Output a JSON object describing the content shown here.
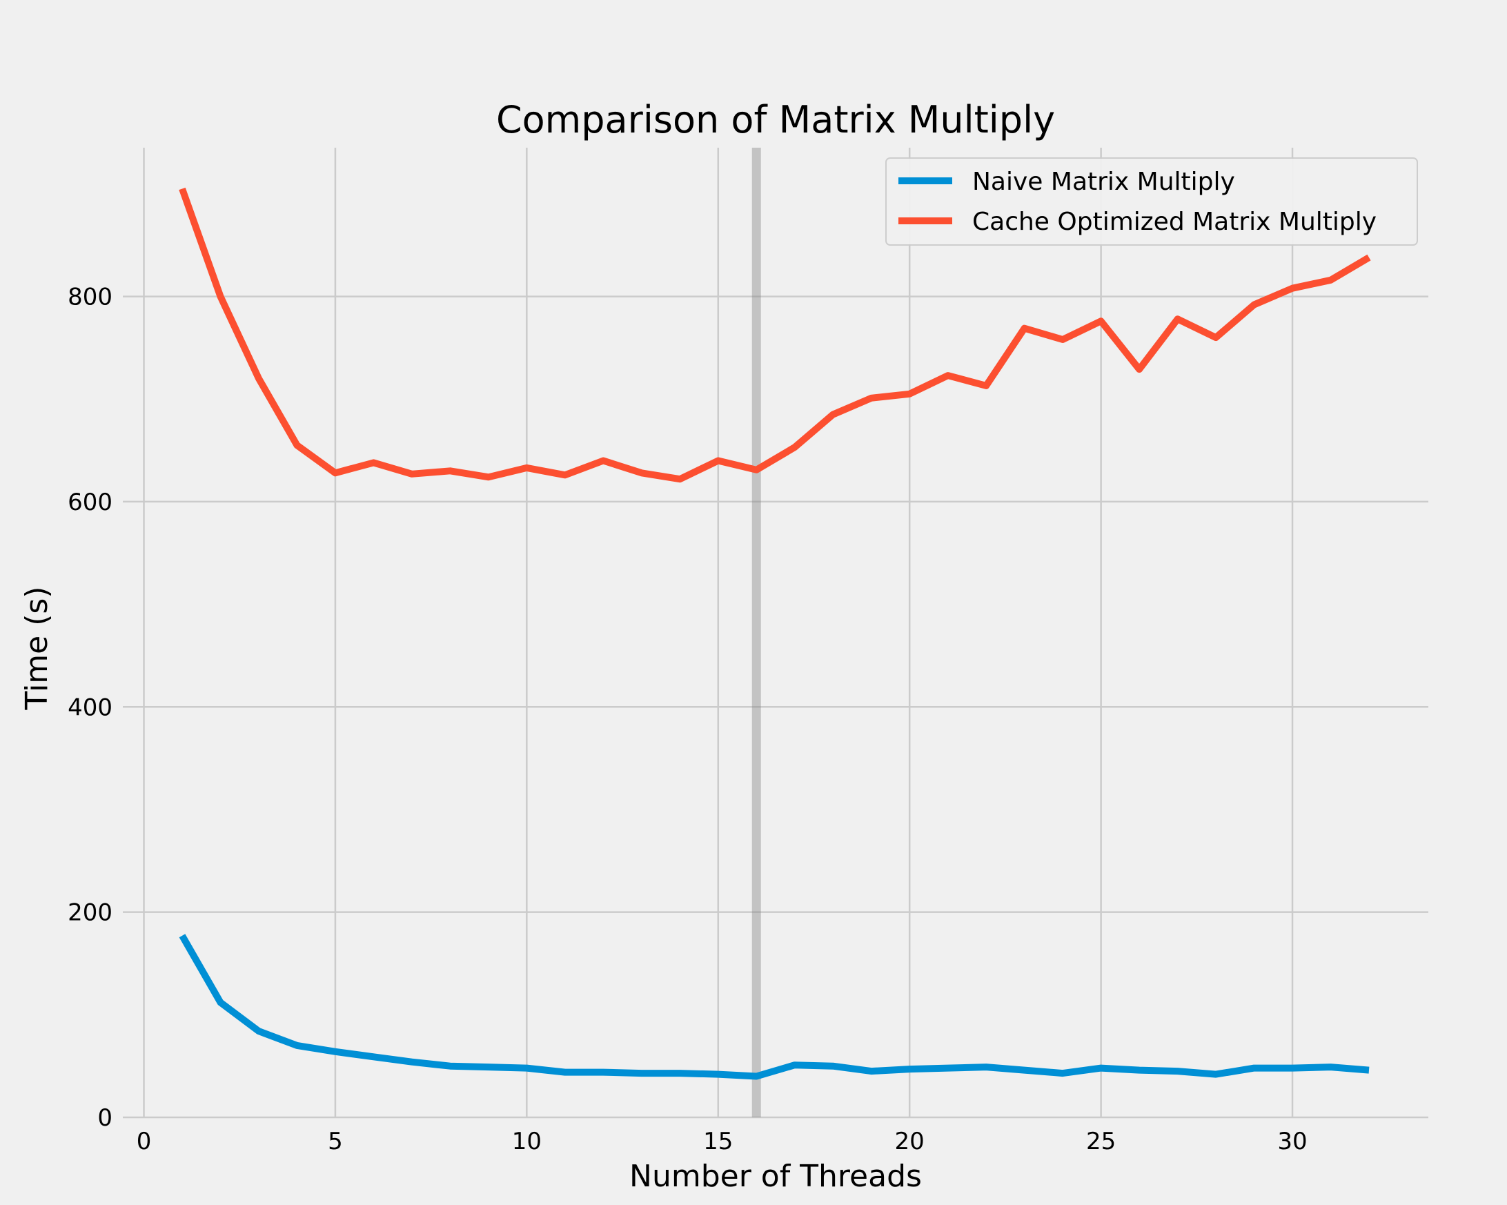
{
  "chart_data": {
    "type": "line",
    "title": "Comparison of Matrix Multiply",
    "xlabel": "Number of Threads",
    "ylabel": "Time (s)",
    "xlim": [
      -0.55,
      33.55
    ],
    "ylim": [
      0,
      945
    ],
    "xticks": [
      0,
      5,
      10,
      15,
      20,
      25,
      30
    ],
    "yticks": [
      0,
      200,
      400,
      600,
      800
    ],
    "grid": true,
    "legend_position": "top-right",
    "vline": {
      "x": 16,
      "color": "#808080"
    },
    "x": [
      1,
      2,
      3,
      4,
      5,
      6,
      7,
      8,
      9,
      10,
      11,
      12,
      13,
      14,
      15,
      16,
      17,
      18,
      19,
      20,
      21,
      22,
      23,
      24,
      25,
      26,
      27,
      28,
      29,
      30,
      31,
      32
    ],
    "series": [
      {
        "name": "Naive Matrix Multiply",
        "color": "#008fd5",
        "values": [
          177,
          112,
          84,
          70,
          64,
          59,
          54,
          50,
          49,
          48,
          44,
          44,
          43,
          43,
          42,
          40,
          51,
          50,
          45,
          47,
          48,
          49,
          46,
          43,
          48,
          46,
          45,
          42,
          48,
          48,
          49,
          46
        ]
      },
      {
        "name": "Cache Optimized Matrix Multiply",
        "color": "#fc4f30",
        "values": [
          905,
          800,
          720,
          655,
          628,
          638,
          627,
          630,
          624,
          633,
          626,
          640,
          628,
          622,
          640,
          631,
          653,
          685,
          701,
          705,
          723,
          713,
          769,
          758,
          776,
          729,
          778,
          760,
          792,
          808,
          816,
          838
        ]
      }
    ]
  }
}
